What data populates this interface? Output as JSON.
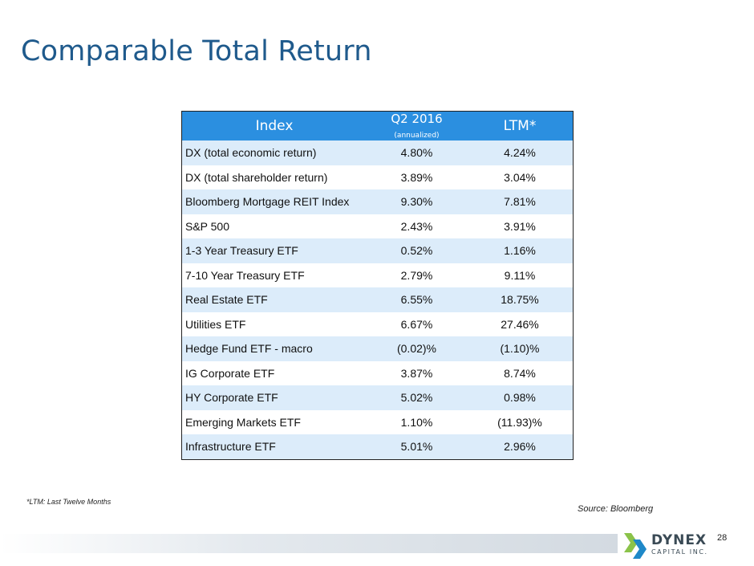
{
  "title": "Comparable Total Return",
  "table": {
    "headers": {
      "index": "Index",
      "q2_main": "Q2 2016",
      "q2_sub": "(annualized)",
      "ltm": "LTM*"
    },
    "rows": [
      {
        "name": "DX (total economic return)",
        "q2": "4.80%",
        "ltm": "4.24%"
      },
      {
        "name": "DX (total shareholder return)",
        "q2": "3.89%",
        "ltm": "3.04%"
      },
      {
        "name": "Bloomberg Mortgage REIT Index",
        "q2": "9.30%",
        "ltm": "7.81%"
      },
      {
        "name": "S&P 500",
        "q2": "2.43%",
        "ltm": "3.91%"
      },
      {
        "name": "1-3 Year Treasury ETF",
        "q2": "0.52%",
        "ltm": "1.16%"
      },
      {
        "name": "7-10 Year Treasury ETF",
        "q2": "2.79%",
        "ltm": "9.11%"
      },
      {
        "name": "Real Estate ETF",
        "q2": "6.55%",
        "ltm": "18.75%"
      },
      {
        "name": "Utilities ETF",
        "q2": "6.67%",
        "ltm": "27.46%"
      },
      {
        "name": "Hedge Fund ETF - macro",
        "q2": "(0.02)%",
        "ltm": "(1.10)%"
      },
      {
        "name": "IG Corporate ETF",
        "q2": "3.87%",
        "ltm": "8.74%"
      },
      {
        "name": "HY Corporate ETF",
        "q2": "5.02%",
        "ltm": "0.98%"
      },
      {
        "name": "Emerging Markets ETF",
        "q2": "1.10%",
        "ltm": "(11.93)%"
      },
      {
        "name": "Infrastructure ETF",
        "q2": "5.01%",
        "ltm": "2.96%"
      }
    ]
  },
  "footnote": "*LTM: Last Twelve Months",
  "source": "Source: Bloomberg",
  "page_number": "28",
  "logo": {
    "line1": "DYNEX",
    "line2": "CAPITAL INC."
  },
  "colors": {
    "title": "#1f5a8c",
    "header_bg": "#2b8fe0",
    "alt_row_bg": "#dcecfa",
    "logo_green": "#8bc34a",
    "logo_blue": "#1e88c8"
  }
}
